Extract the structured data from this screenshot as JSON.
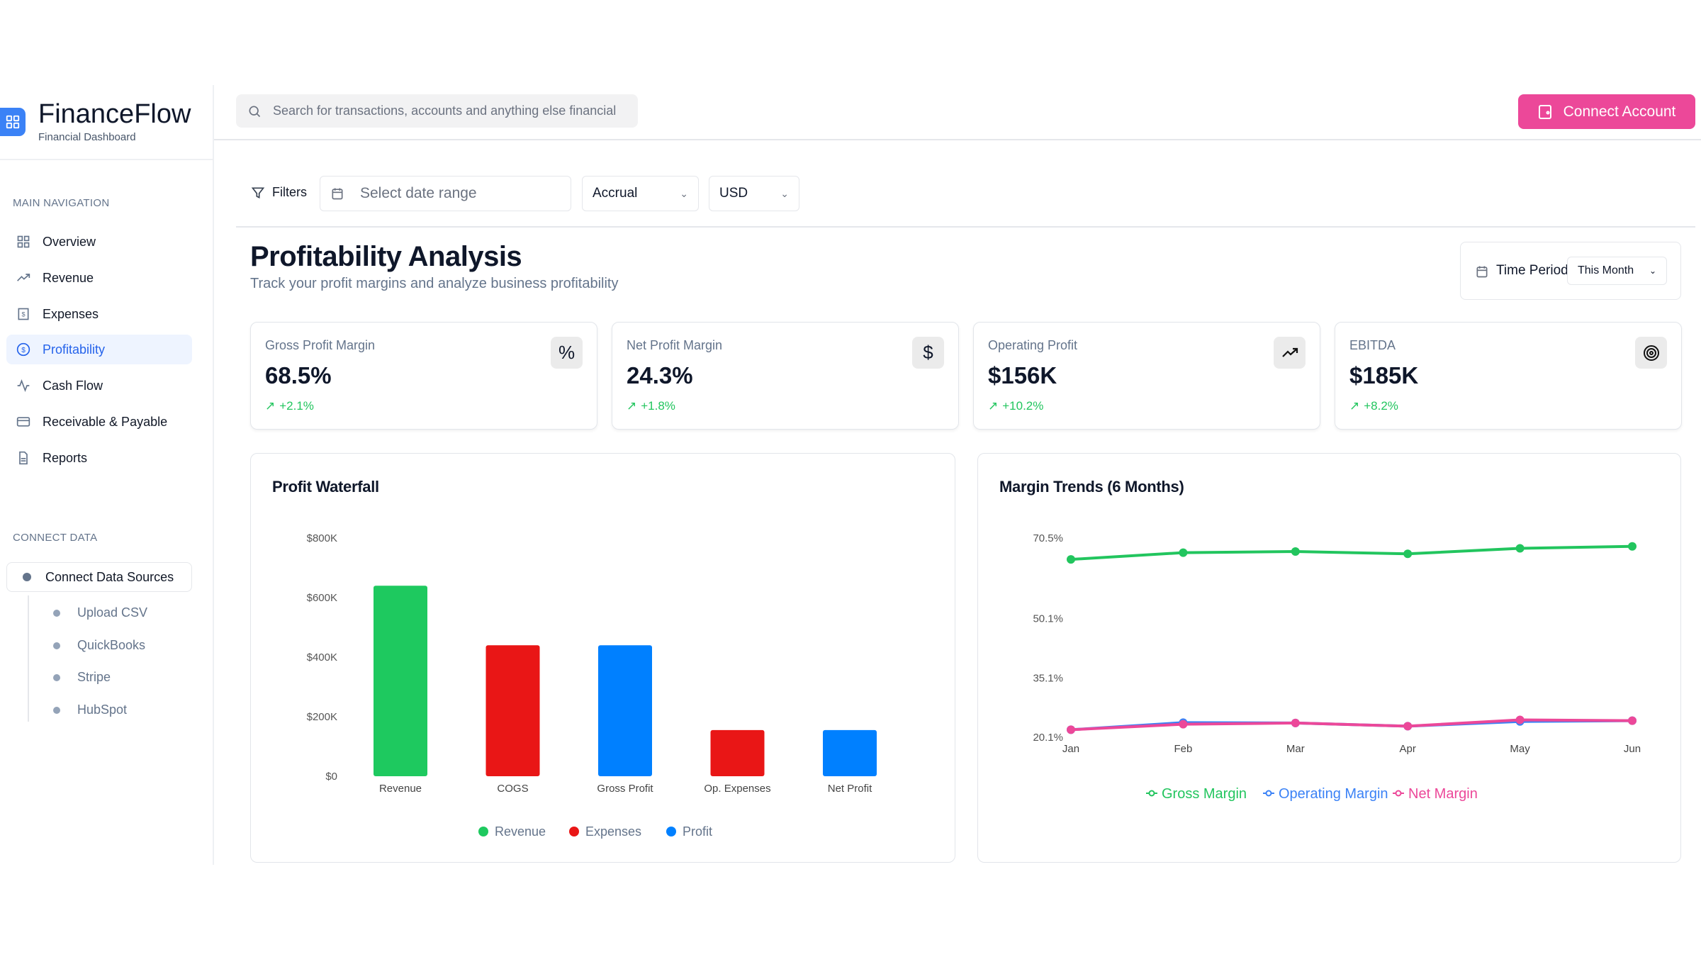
{
  "brand": {
    "name": "FinanceFlow",
    "subtitle": "Financial Dashboard"
  },
  "sidebar": {
    "main_label": "MAIN NAVIGATION",
    "items": [
      {
        "label": "Overview",
        "icon": "grid-icon"
      },
      {
        "label": "Revenue",
        "icon": "trending-up-icon"
      },
      {
        "label": "Expenses",
        "icon": "receipt-icon"
      },
      {
        "label": "Profitability",
        "icon": "dollar-circle-icon",
        "active": true
      },
      {
        "label": "Cash Flow",
        "icon": "activity-icon"
      },
      {
        "label": "Receivable & Payable",
        "icon": "credit-card-icon"
      },
      {
        "label": "Reports",
        "icon": "file-text-icon"
      }
    ],
    "connect_label": "CONNECT DATA",
    "connect_button": "Connect Data Sources",
    "sources": [
      "Upload CSV",
      "QuickBooks",
      "Stripe",
      "HubSpot"
    ]
  },
  "header": {
    "search_placeholder": "Search for transactions, accounts and anything else financial",
    "connect_button": "Connect Account"
  },
  "filters": {
    "label": "Filters",
    "date_placeholder": "Select date range",
    "basis": "Accrual",
    "currency": "USD"
  },
  "page": {
    "title": "Profitability Analysis",
    "subtitle": "Track your profit margins and analyze business profitability",
    "time_period_label": "Time Period",
    "time_period_value": "This Month"
  },
  "kpis": [
    {
      "label": "Gross Profit Margin",
      "value": "68.5%",
      "change": "+2.1%",
      "icon": "percent-icon"
    },
    {
      "label": "Net Profit Margin",
      "value": "24.3%",
      "change": "+1.8%",
      "icon": "dollar-icon"
    },
    {
      "label": "Operating Profit",
      "value": "$156K",
      "change": "+10.2%",
      "icon": "trending-up-icon"
    },
    {
      "label": "EBITDA",
      "value": "$185K",
      "change": "+8.2%",
      "icon": "target-icon"
    }
  ],
  "colors": {
    "accent": "#ec4899",
    "revenue": "#1ec95f",
    "expenses": "#e91616",
    "profit": "#0080ff",
    "gross": "#22c55e",
    "operating": "#3b82f6",
    "net": "#ec4899",
    "positive": "#22c55e"
  },
  "chart_data": [
    {
      "type": "bar",
      "title": "Profit Waterfall",
      "categories": [
        "Revenue",
        "COGS",
        "Gross Profit",
        "Op. Expenses",
        "Net Profit"
      ],
      "values": [
        640000,
        440000,
        440000,
        155000,
        155000
      ],
      "groups": [
        "Revenue",
        "Expenses",
        "Profit",
        "Expenses",
        "Profit"
      ],
      "yticks": [
        "$0",
        "$200K",
        "$400K",
        "$600K",
        "$800K"
      ],
      "ylim": [
        0,
        800000
      ],
      "legend": [
        "Revenue",
        "Expenses",
        "Profit"
      ],
      "legend_position": "bottom",
      "grid": false
    },
    {
      "type": "line",
      "title": "Margin Trends (6 Months)",
      "x": [
        "Jan",
        "Feb",
        "Mar",
        "Apr",
        "May",
        "Jun"
      ],
      "yticks": [
        "20.1%",
        "35.1%",
        "50.1%",
        "70.5%"
      ],
      "ylim": [
        20.1,
        70.5
      ],
      "series": [
        {
          "name": "Gross Margin",
          "values": [
            65.1,
            66.8,
            67.1,
            66.5,
            67.9,
            68.4
          ]
        },
        {
          "name": "Operating Margin",
          "values": [
            22.0,
            23.8,
            23.7,
            22.9,
            24.1,
            24.3
          ]
        },
        {
          "name": "Net Margin",
          "values": [
            22.0,
            23.4,
            23.7,
            22.9,
            24.5,
            24.3
          ]
        }
      ],
      "legend_position": "bottom",
      "grid": false
    }
  ]
}
